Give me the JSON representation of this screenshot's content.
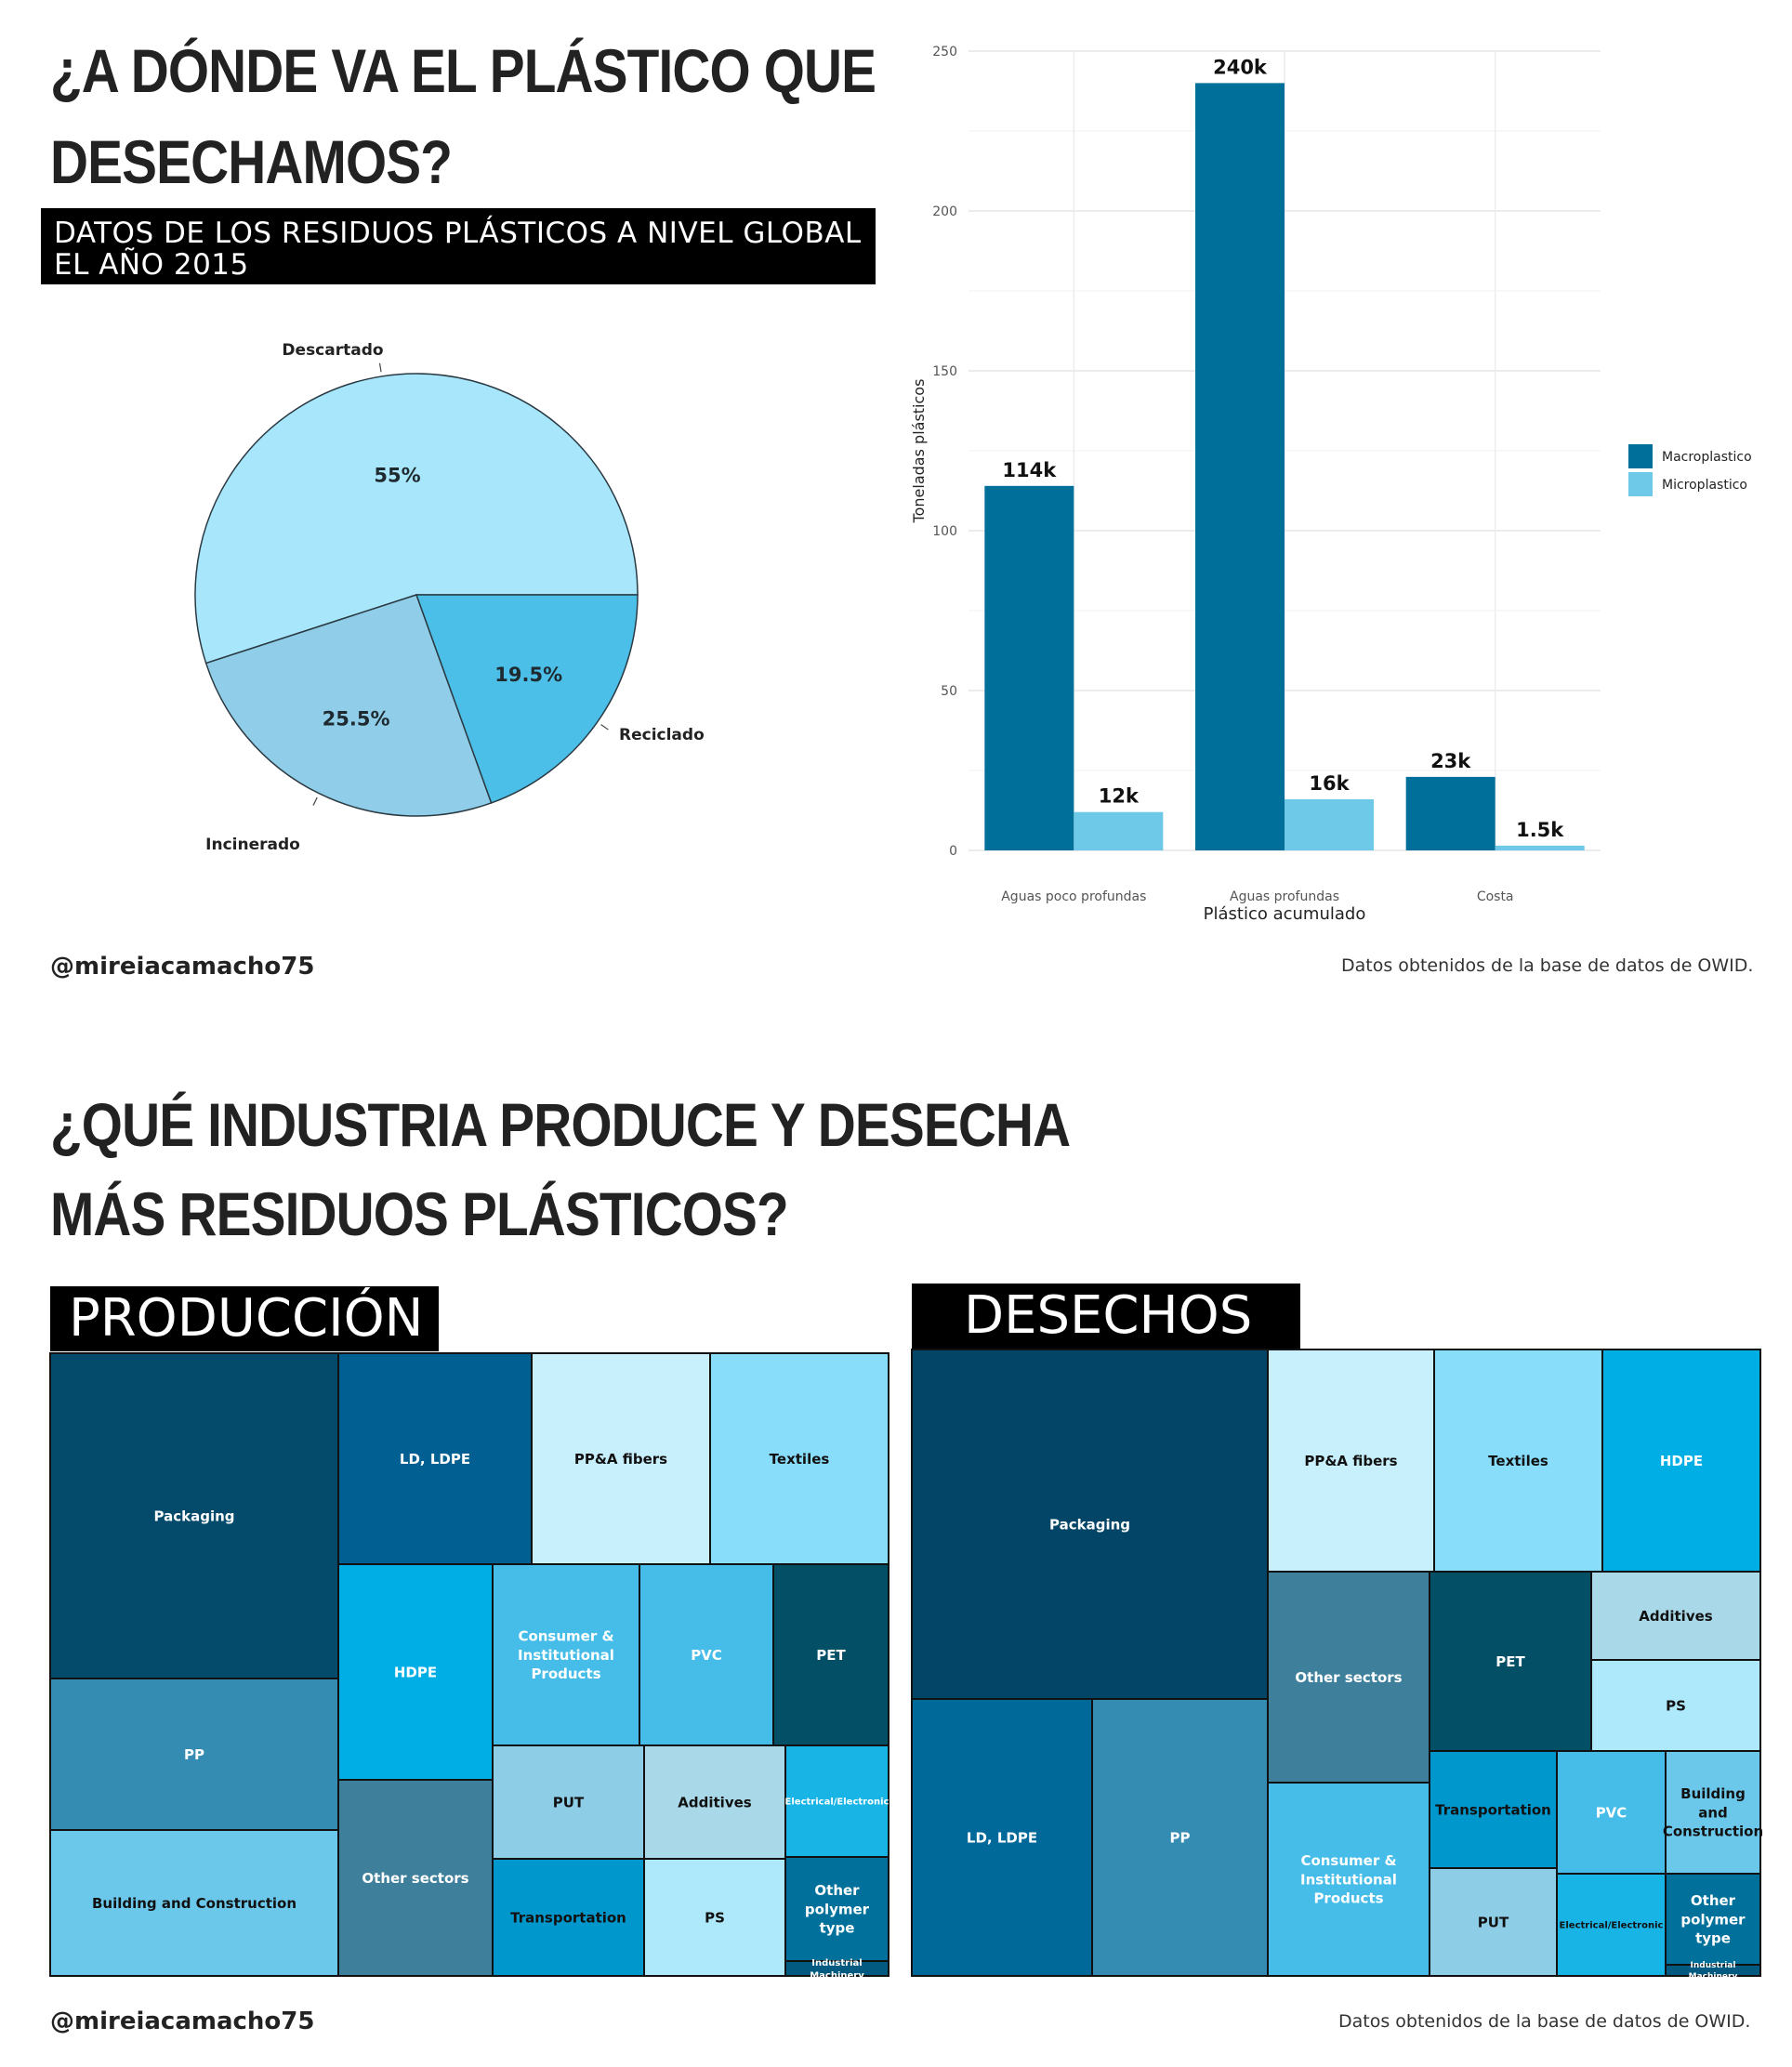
{
  "top": {
    "title_line1": "¿A DÓNDE VA EL PLÁSTICO QUE",
    "title_line2": "DESECHAMOS?",
    "subtitle_line1": "DATOS DE LOS RESIDUOS PLÁSTICOS A NIVEL GLOBAL",
    "subtitle_line2": "EL AÑO 2015",
    "handle": "@mireiacamacho75",
    "source": "Datos obtenidos de la base de datos de OWID."
  },
  "bottom": {
    "title_line1": "¿QUÉ INDUSTRIA PRODUCE Y DESECHA",
    "title_line2": "MÁS RESIDUOS PLÁSTICOS?",
    "prod_label": "PRODUCCIÓN",
    "waste_label": "DESECHOS",
    "handle": "@mireiacamacho75",
    "source": "Datos obtenidos de la base de datos de OWID."
  },
  "colors": {
    "macro": "#006f9a",
    "micro": "#6ec8e8"
  },
  "chart_data": [
    {
      "type": "pie",
      "title": "",
      "slices": [
        {
          "label": "Descartado",
          "value": 55,
          "text": "55%",
          "color": "#a8e6fb"
        },
        {
          "label": "Reciclado",
          "value": 19.5,
          "text": "19.5%",
          "color": "#4bbfe8"
        },
        {
          "label": "Incinerado",
          "value": 25.5,
          "text": "25.5%",
          "color": "#8fcde8"
        }
      ]
    },
    {
      "type": "bar",
      "title": "",
      "xlabel": "Plástico acumulado",
      "ylabel": "Toneladas plásticos",
      "categories": [
        "Aguas poco profundas",
        "Aguas profundas",
        "Costa"
      ],
      "ylim": [
        0,
        250
      ],
      "yticks": [
        0,
        50,
        100,
        150,
        200,
        250
      ],
      "legend_position": "right",
      "grid": true,
      "series": [
        {
          "name": "Macroplastico",
          "values": [
            114,
            240,
            23
          ],
          "labels": [
            "114k",
            "240k",
            "23k"
          ]
        },
        {
          "name": "Microplastico",
          "values": [
            12,
            16,
            1.5
          ],
          "labels": [
            "12k",
            "16k",
            "1.5k"
          ]
        }
      ]
    },
    {
      "type": "treemap",
      "title": "PRODUCCIÓN",
      "cells": [
        {
          "label": "Packaging"
        },
        {
          "label": "LD, LDPE"
        },
        {
          "label": "PP&A fibers"
        },
        {
          "label": "Textiles"
        },
        {
          "label": "HDPE"
        },
        {
          "label": "Consumer & Institutional Products"
        },
        {
          "label": "PVC"
        },
        {
          "label": "PET"
        },
        {
          "label": "PP"
        },
        {
          "label": "Other sectors"
        },
        {
          "label": "PUT"
        },
        {
          "label": "Additives"
        },
        {
          "label": "Electrical/Electronic"
        },
        {
          "label": "Building and Construction"
        },
        {
          "label": "Transportation"
        },
        {
          "label": "PS"
        },
        {
          "label": "Other polymer type"
        },
        {
          "label": "Industrial Machinery"
        }
      ]
    },
    {
      "type": "treemap",
      "title": "DESECHOS",
      "cells": [
        {
          "label": "Packaging"
        },
        {
          "label": "PP&A fibers"
        },
        {
          "label": "Textiles"
        },
        {
          "label": "HDPE"
        },
        {
          "label": "Other sectors"
        },
        {
          "label": "PET"
        },
        {
          "label": "Additives"
        },
        {
          "label": "PS"
        },
        {
          "label": "LD, LDPE"
        },
        {
          "label": "PP"
        },
        {
          "label": "Consumer & Institutional Products"
        },
        {
          "label": "Transportation"
        },
        {
          "label": "PVC"
        },
        {
          "label": "Building and Construction"
        },
        {
          "label": "PUT"
        },
        {
          "label": "Electrical/Electronic"
        },
        {
          "label": "Other polymer type"
        },
        {
          "label": "Industrial Machinery"
        }
      ]
    }
  ]
}
